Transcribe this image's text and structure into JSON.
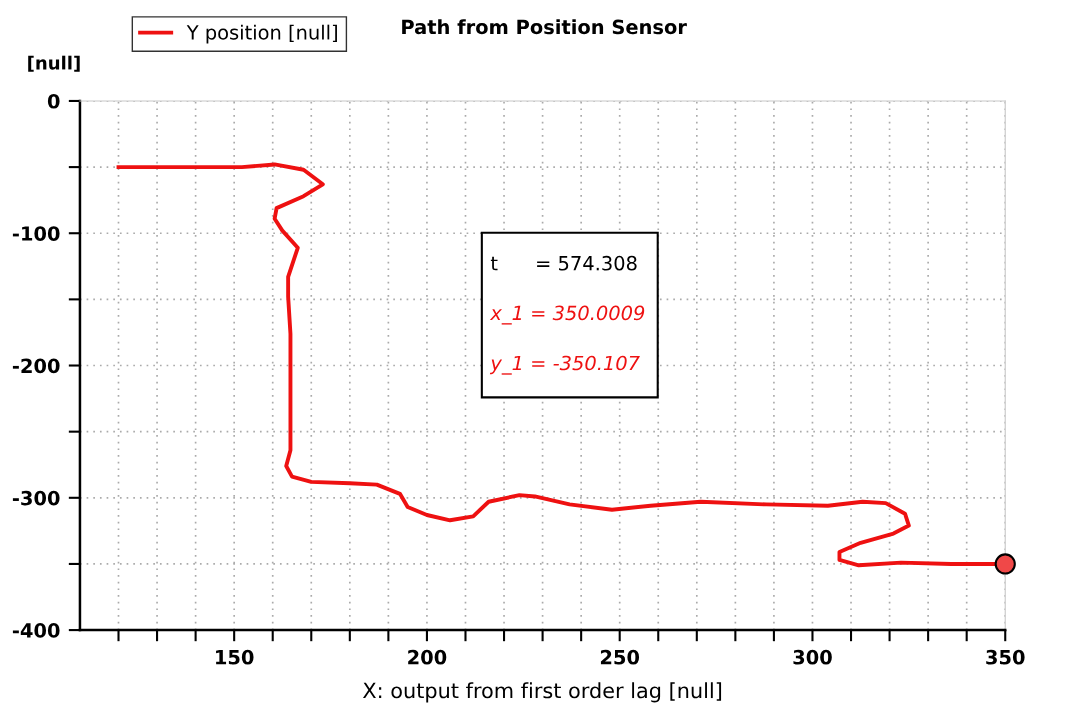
{
  "chart_data": {
    "type": "line",
    "title": "Path from Position Sensor",
    "xlabel": "X: output from first order lag [null]",
    "ylabel": "[null]",
    "series": [
      {
        "name": "Y position [null]",
        "color": "#ee1111",
        "x": [
          120,
          152,
          160.5,
          168,
          173,
          168,
          161,
          160.5,
          162.5,
          166.5,
          164,
          164,
          164.6,
          164.6,
          164.6,
          163.5,
          165,
          170,
          180,
          187,
          193,
          195,
          200,
          206,
          212,
          216,
          224,
          228,
          237,
          248,
          258,
          271,
          288,
          304,
          313,
          319,
          324,
          325,
          321,
          312.5,
          307,
          307,
          312,
          323,
          336,
          350
        ],
        "values": [
          -50,
          -50,
          -48,
          -52,
          -63,
          -72,
          -81,
          -89,
          -98,
          -111,
          -133,
          -148,
          -176,
          -181,
          -264,
          -276,
          -284,
          -288,
          -289,
          -290,
          -297,
          -307,
          -313,
          -317,
          -314,
          -303,
          -298,
          -299,
          -305,
          -309,
          -306,
          -303,
          -305,
          -306,
          -303,
          -304,
          -312,
          -321,
          -327,
          -334,
          -341,
          -347,
          -351,
          -349,
          -350,
          -350
        ]
      },
      {
        "type": "scatter",
        "color": "#f04848",
        "x": [
          350
        ],
        "values": [
          -350
        ]
      }
    ],
    "xlim": [
      110,
      350
    ],
    "ylim": [
      -400,
      0
    ],
    "xticks": [
      {
        "value": 120,
        "label": null
      },
      {
        "value": 130,
        "label": null
      },
      {
        "value": 140,
        "label": null
      },
      150,
      {
        "value": 160,
        "label": null
      },
      {
        "value": 170,
        "label": null
      },
      {
        "value": 180,
        "label": null
      },
      {
        "value": 190,
        "label": null
      },
      200,
      {
        "value": 210,
        "label": null
      },
      {
        "value": 220,
        "label": null
      },
      {
        "value": 230,
        "label": null
      },
      {
        "value": 240,
        "label": null
      },
      250,
      {
        "value": 260,
        "label": null
      },
      {
        "value": 270,
        "label": null
      },
      {
        "value": 280,
        "label": null
      },
      {
        "value": 290,
        "label": null
      },
      300,
      {
        "value": 310,
        "label": null
      },
      {
        "value": 320,
        "label": null
      },
      {
        "value": 330,
        "label": null
      },
      {
        "value": 340,
        "label": null
      },
      350
    ],
    "yticks": [
      -400,
      {
        "value": -350,
        "label": null
      },
      -300,
      {
        "value": -250,
        "label": null
      },
      -200,
      {
        "value": -150,
        "label": null
      },
      -100,
      {
        "value": -50,
        "label": null
      },
      0
    ],
    "grid": true,
    "legend": "top left",
    "line_style": "solid",
    "annotations": [
      "t      = 574.308",
      "x_1 = 350.0009",
      "y_1 = -350.107"
    ]
  }
}
